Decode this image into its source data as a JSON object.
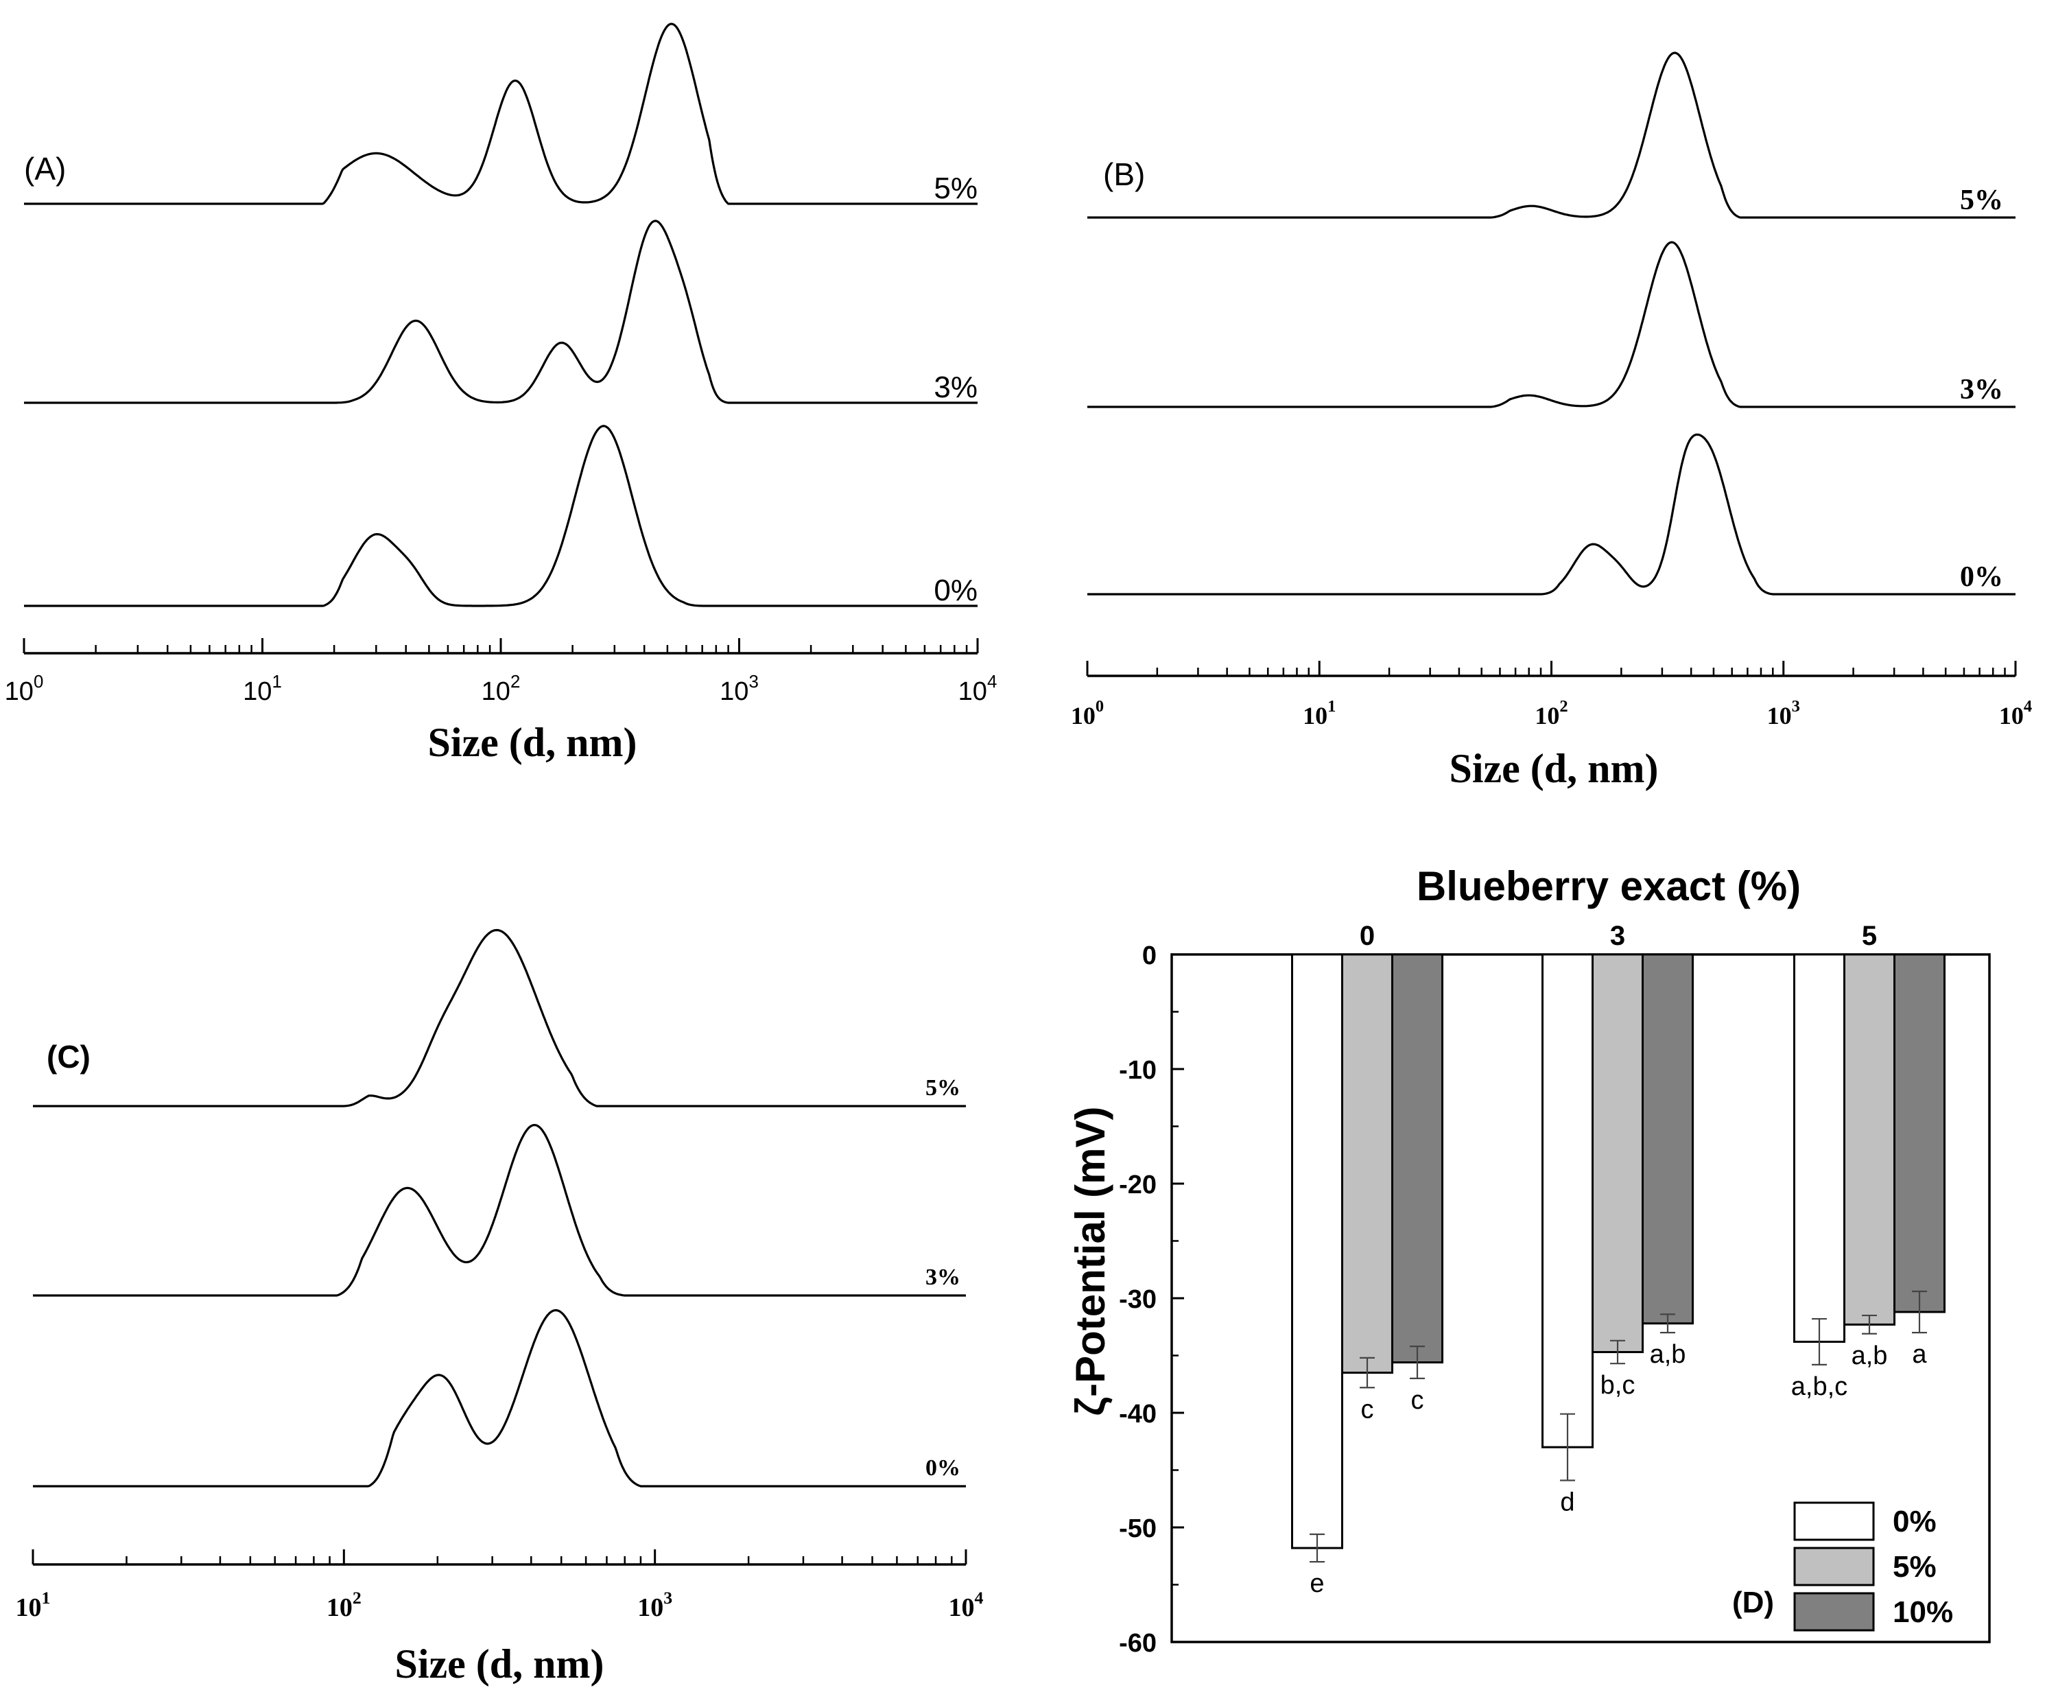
{
  "chart_data": [
    {
      "panel": "A",
      "type": "line",
      "title": "",
      "panel_label": "(A)",
      "xlabel": "Size (d, nm)",
      "ylabel": "",
      "xscale": "log",
      "xlim": [
        1,
        10000
      ],
      "x_ticks": [
        {
          "base": "10",
          "exp": "0"
        },
        {
          "base": "10",
          "exp": "1"
        },
        {
          "base": "10",
          "exp": "2"
        },
        {
          "base": "10",
          "exp": "3"
        },
        {
          "base": "10",
          "exp": "4"
        }
      ],
      "series": [
        {
          "name": "5%",
          "peaks": [
            {
              "size": 30,
              "height": 0.32,
              "width": 0.16
            },
            {
              "size": 115,
              "height": 0.78,
              "width": 0.09
            },
            {
              "size": 520,
              "height": 1.14,
              "width": 0.11
            }
          ],
          "range": [
            18,
            900
          ]
        },
        {
          "name": "3%",
          "peaks": [
            {
              "size": 44,
              "height": 0.52,
              "width": 0.1
            },
            {
              "size": 180,
              "height": 0.38,
              "width": 0.08
            },
            {
              "size": 440,
              "height": 1.14,
              "width": 0.1
            },
            {
              "size": 620,
              "height": 0.25,
              "width": 0.06
            }
          ],
          "range": [
            20,
            900
          ]
        },
        {
          "name": "0%",
          "peaks": [
            {
              "size": 30,
              "height": 0.45,
              "width": 0.1
            },
            {
              "size": 43,
              "height": 0.12,
              "width": 0.06
            },
            {
              "size": 270,
              "height": 1.14,
              "width": 0.12
            }
          ],
          "range": [
            18,
            700
          ]
        }
      ]
    },
    {
      "panel": "B",
      "type": "line",
      "title": "",
      "panel_label": "(B)",
      "xlabel": "Size (d, nm)",
      "ylabel": "",
      "xscale": "log",
      "xlim": [
        1,
        10000
      ],
      "x_ticks": [
        {
          "base": "10",
          "exp": "0"
        },
        {
          "base": "10",
          "exp": "1"
        },
        {
          "base": "10",
          "exp": "2"
        },
        {
          "base": "10",
          "exp": "3"
        },
        {
          "base": "10",
          "exp": "4"
        }
      ],
      "series": [
        {
          "name": "5%",
          "peaks": [
            {
              "size": 82,
              "height": 0.07,
              "width": 0.09
            },
            {
              "size": 340,
              "height": 1.0,
              "width": 0.11
            }
          ],
          "range": [
            55,
            650
          ]
        },
        {
          "name": "3%",
          "peaks": [
            {
              "size": 80,
              "height": 0.07,
              "width": 0.09
            },
            {
              "size": 330,
              "height": 1.0,
              "width": 0.11
            }
          ],
          "range": [
            55,
            650
          ]
        },
        {
          "name": "0%",
          "peaks": [
            {
              "size": 150,
              "height": 0.3,
              "width": 0.08
            },
            {
              "size": 200,
              "height": 0.08,
              "width": 0.05
            },
            {
              "size": 460,
              "height": 0.9,
              "width": 0.1
            },
            {
              "size": 370,
              "height": 0.25,
              "width": 0.05
            }
          ],
          "range": [
            90,
            900
          ]
        }
      ]
    },
    {
      "panel": "C",
      "type": "line",
      "title": "",
      "panel_label": "(C)",
      "xlabel": "Size (d, nm)",
      "ylabel": "",
      "xscale": "log",
      "xlim": [
        10,
        10000
      ],
      "x_ticks": [
        {
          "base": "10",
          "exp": "1"
        },
        {
          "base": "10",
          "exp": "2"
        },
        {
          "base": "10",
          "exp": "3"
        },
        {
          "base": "10",
          "exp": "4"
        }
      ],
      "series": [
        {
          "name": "5%",
          "peaks": [
            {
              "size": 120,
              "height": 0.05,
              "width": 0.04
            },
            {
              "size": 310,
              "height": 0.95,
              "width": 0.13
            },
            {
              "size": 200,
              "height": 0.1,
              "width": 0.05
            }
          ],
          "range": [
            100,
            650
          ]
        },
        {
          "name": "3%",
          "peaks": [
            {
              "size": 160,
              "height": 0.58,
              "width": 0.1
            },
            {
              "size": 410,
              "height": 0.92,
              "width": 0.1
            }
          ],
          "range": [
            95,
            800
          ]
        },
        {
          "name": "0%",
          "peaks": [
            {
              "size": 205,
              "height": 0.58,
              "width": 0.08
            },
            {
              "size": 150,
              "height": 0.2,
              "width": 0.06
            },
            {
              "size": 480,
              "height": 0.95,
              "width": 0.11
            }
          ],
          "range": [
            120,
            900
          ]
        }
      ]
    },
    {
      "panel": "D",
      "type": "bar",
      "title": "Blueberry exact (%)",
      "panel_label": "(D)",
      "xlabel": "",
      "ylabel": "ζ-Potential (mV)",
      "ylim": [
        -60,
        0
      ],
      "y_ticks": [
        "0",
        "-10",
        "-20",
        "-30",
        "-40",
        "-50",
        "-60"
      ],
      "categories": [
        "0",
        "3",
        "5"
      ],
      "series": [
        {
          "name": "0%",
          "color": "#ffffff",
          "values": [
            -51.8,
            -43.0,
            -33.8
          ],
          "errors": [
            1.2,
            2.9,
            2.0
          ],
          "letters": [
            "e",
            "d",
            "a,b,c"
          ]
        },
        {
          "name": "5%",
          "color": "#c0c0c0",
          "values": [
            -36.5,
            -34.7,
            -32.3
          ],
          "errors": [
            1.3,
            1.0,
            0.8
          ],
          "letters": [
            "c",
            "b,c",
            "a,b"
          ]
        },
        {
          "name": "10%",
          "color": "#808080",
          "values": [
            -35.6,
            -32.2,
            -31.2
          ],
          "errors": [
            1.4,
            0.8,
            1.8
          ],
          "letters": [
            "c",
            "a,b",
            "a"
          ]
        }
      ],
      "legend": {
        "position": "bottom-right",
        "entries": [
          "0%",
          "5%",
          "10%"
        ]
      }
    }
  ]
}
